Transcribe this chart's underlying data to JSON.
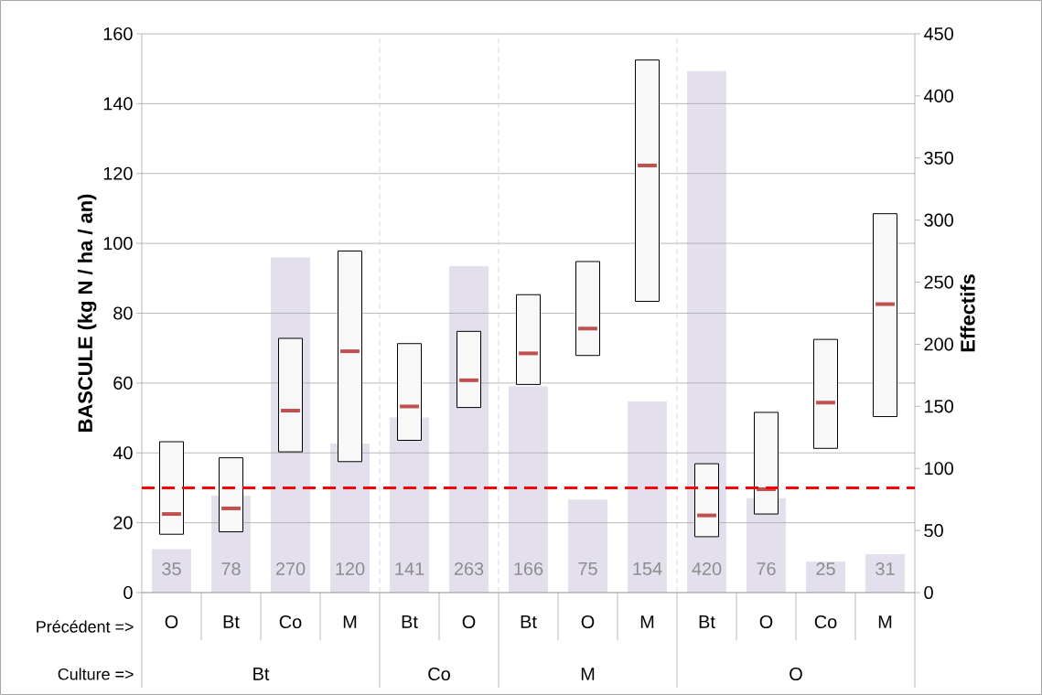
{
  "chart_data": {
    "type": "box",
    "categories": [
      "O",
      "Bt",
      "Co",
      "M",
      "Bt",
      "O",
      "Bt",
      "O",
      "M",
      "Bt",
      "O",
      "Co",
      "M"
    ],
    "ylabel": "BASCULE (kg N / ha / an)",
    "y2label": "Effectifs",
    "ylim": [
      0,
      160
    ],
    "yticks": [
      0,
      20,
      40,
      60,
      80,
      100,
      120,
      140,
      160
    ],
    "y2lim": [
      0,
      450
    ],
    "y2ticks": [
      0,
      50,
      100,
      150,
      200,
      250,
      300,
      350,
      400,
      450
    ],
    "grid": "y",
    "annotations": [
      "Précédent =>",
      "Culture =>",
      "Bt",
      "Co",
      "M",
      "O"
    ],
    "ref_lines": [
      {
        "axis": "y",
        "value": 30,
        "color": "#ff0000",
        "line_style": "dashed"
      }
    ],
    "series": [
      {
        "type": "bar",
        "axis": "y2",
        "color": "#e4dfec",
        "data_labels": true,
        "values": [
          35,
          78,
          270,
          120,
          141,
          263,
          166,
          75,
          154,
          420,
          76,
          25,
          31
        ]
      },
      {
        "color": "#f8f8f8",
        "boxes": [
          {
            "low": 16.7,
            "q1": 16.7,
            "median": 22.5,
            "q3": 43.2,
            "high": 43.2
          },
          {
            "low": 17.4,
            "q1": 17.4,
            "median": 24.1,
            "q3": 38.6,
            "high": 38.6
          },
          {
            "low": 40.3,
            "q1": 40.3,
            "median": 52.1,
            "q3": 72.8,
            "high": 72.8
          },
          {
            "low": 37.5,
            "q1": 37.5,
            "median": 69.1,
            "q3": 97.8,
            "high": 97.8
          },
          {
            "low": 43.6,
            "q1": 43.6,
            "median": 53.3,
            "q3": 71.3,
            "high": 71.3
          },
          {
            "low": 53.0,
            "q1": 53.0,
            "median": 60.8,
            "q3": 74.8,
            "high": 74.8
          },
          {
            "low": 59.6,
            "q1": 59.6,
            "median": 68.5,
            "q3": 85.3,
            "high": 85.3
          },
          {
            "low": 67.9,
            "q1": 67.9,
            "median": 75.6,
            "q3": 94.8,
            "high": 94.8
          },
          {
            "low": 83.4,
            "q1": 83.4,
            "median": 122.3,
            "q3": 152.5,
            "high": 152.5
          },
          {
            "low": 16.0,
            "q1": 16.0,
            "median": 22.1,
            "q3": 36.9,
            "high": 36.9
          },
          {
            "low": 22.5,
            "q1": 22.5,
            "median": 29.6,
            "q3": 51.6,
            "high": 51.6
          },
          {
            "low": 41.3,
            "q1": 41.3,
            "median": 54.4,
            "q3": 72.5,
            "high": 72.5
          },
          {
            "low": 50.4,
            "q1": 50.4,
            "median": 82.6,
            "q3": 108.5,
            "high": 108.5
          }
        ]
      }
    ]
  }
}
